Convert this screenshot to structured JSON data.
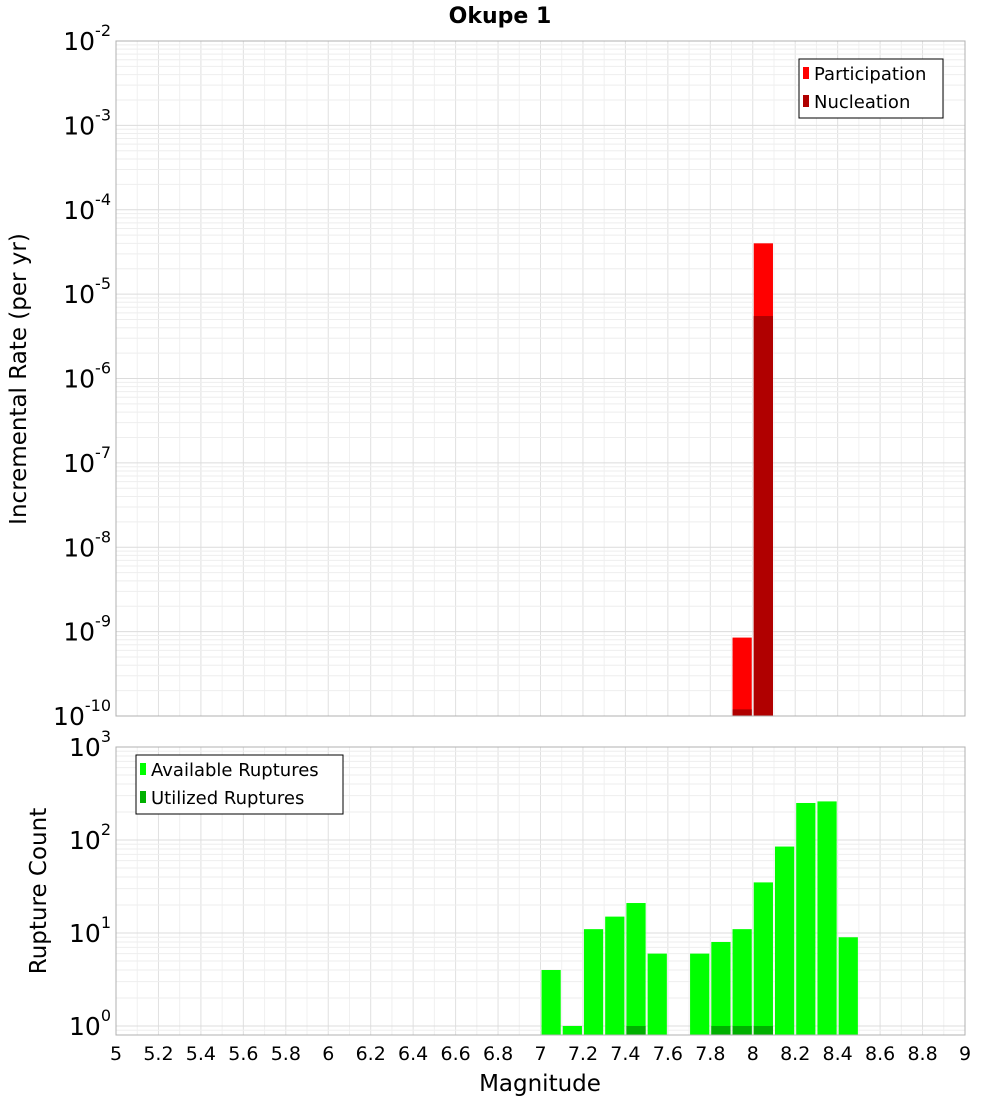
{
  "chart_data": [
    {
      "type": "bar",
      "title": "Okupe 1",
      "xlabel": "",
      "ylabel": "Incremental Rate (per yr)",
      "xlim": [
        5,
        9
      ],
      "ylim": [
        1e-10,
        0.01
      ],
      "yscale": "log",
      "ytick_exponents": [
        -10,
        -9,
        -8,
        -7,
        -6,
        -5,
        -4,
        -3,
        -2
      ],
      "grid": true,
      "legend_placement": "top-right",
      "bin_width": 0.1,
      "series": [
        {
          "name": "Participation",
          "color": "#ff0000",
          "x": [
            7.95,
            8.05
          ],
          "values": [
            8.5e-10,
            4e-05
          ]
        },
        {
          "name": "Nucleation",
          "color": "#b00000",
          "x": [
            7.95,
            8.05
          ],
          "values": [
            1.2e-10,
            5.5e-06
          ]
        }
      ]
    },
    {
      "type": "bar",
      "title": "",
      "xlabel": "Magnitude",
      "ylabel": "Rupture Count",
      "xlim": [
        5,
        9
      ],
      "ylim": [
        0.8,
        1000
      ],
      "yscale": "log",
      "ytick_exponents": [
        0,
        1,
        2,
        3
      ],
      "xticks": [
        "5",
        "5.2",
        "5.4",
        "5.6",
        "5.8",
        "6",
        "6.2",
        "6.4",
        "6.6",
        "6.8",
        "7",
        "7.2",
        "7.4",
        "7.6",
        "7.8",
        "8",
        "8.2",
        "8.4",
        "8.6",
        "8.8",
        "9"
      ],
      "grid": true,
      "legend_placement": "top-left",
      "bin_width": 0.1,
      "series": [
        {
          "name": "Available Ruptures",
          "color": "#00ff00",
          "x": [
            7.05,
            7.15,
            7.25,
            7.35,
            7.45,
            7.55,
            7.75,
            7.85,
            7.95,
            8.05,
            8.15,
            8.25,
            8.35,
            8.45
          ],
          "values": [
            4,
            1,
            11,
            15,
            21,
            6,
            6,
            8,
            11,
            35,
            85,
            250,
            260,
            9
          ]
        },
        {
          "name": "Utilized Ruptures",
          "color": "#00b000",
          "x": [
            7.45,
            7.85,
            7.95,
            8.05
          ],
          "values": [
            1,
            1,
            1,
            1
          ]
        }
      ]
    }
  ]
}
